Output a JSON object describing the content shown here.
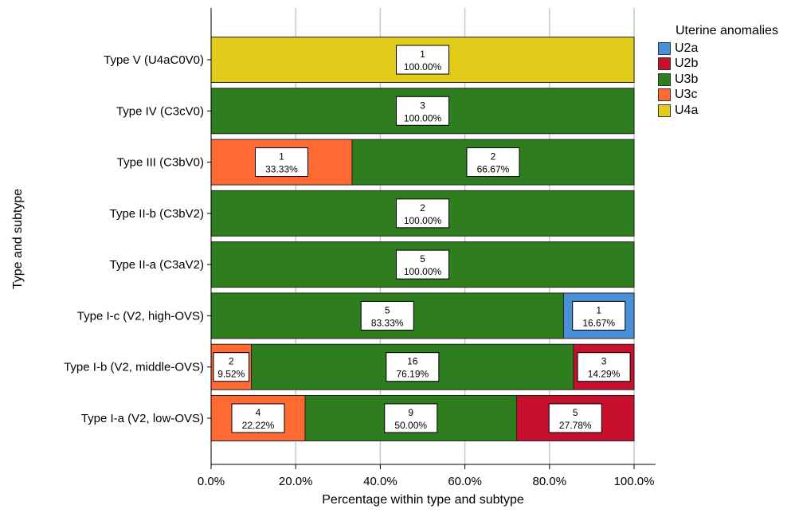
{
  "chart_data": {
    "type": "bar",
    "orientation": "horizontal",
    "stacked": true,
    "xlabel": "Percentage within type and subtype",
    "ylabel": "Type and subtype",
    "xlim": [
      0,
      100
    ],
    "x_ticks": [
      "0.0%",
      "20.0%",
      "40.0%",
      "60.0%",
      "80.0%",
      "100.0%"
    ],
    "grid": "vertical",
    "legend_position": "top-right",
    "legend_title": "Uterine anomalies",
    "legend": [
      {
        "name": "U2a",
        "color": "#4a90d9"
      },
      {
        "name": "U2b",
        "color": "#c8102e"
      },
      {
        "name": "U3b",
        "color": "#2e7d1f"
      },
      {
        "name": "U3c",
        "color": "#ff6a33"
      },
      {
        "name": "U4a",
        "color": "#e1cc1a"
      }
    ],
    "categories": [
      "Type V (U4aC0V0)",
      "Type IV (C3cV0)",
      "Type III (C3bV0)",
      "Type II-b (C3bV2)",
      "Type II-a (C3aV2)",
      "Type I-c (V2, high-OVS)",
      "Type I-b (V2, middle-OVS)",
      "Type I-a (V2, low-OVS)"
    ],
    "bars": [
      {
        "category": "Type V (U4aC0V0)",
        "segments": [
          {
            "series": "U4a",
            "count": "1",
            "percent": 100.0,
            "label": "100.00%"
          }
        ]
      },
      {
        "category": "Type IV (C3cV0)",
        "segments": [
          {
            "series": "U3b",
            "count": "3",
            "percent": 100.0,
            "label": "100.00%"
          }
        ]
      },
      {
        "category": "Type III (C3bV0)",
        "segments": [
          {
            "series": "U3c",
            "count": "1",
            "percent": 33.33,
            "label": "33.33%"
          },
          {
            "series": "U3b",
            "count": "2",
            "percent": 66.67,
            "label": "66.67%"
          }
        ]
      },
      {
        "category": "Type II-b (C3bV2)",
        "segments": [
          {
            "series": "U3b",
            "count": "2",
            "percent": 100.0,
            "label": "100.00%"
          }
        ]
      },
      {
        "category": "Type II-a (C3aV2)",
        "segments": [
          {
            "series": "U3b",
            "count": "5",
            "percent": 100.0,
            "label": "100.00%"
          }
        ]
      },
      {
        "category": "Type I-c (V2, high-OVS)",
        "segments": [
          {
            "series": "U3b",
            "count": "5",
            "percent": 83.33,
            "label": "83.33%"
          },
          {
            "series": "U2a",
            "count": "1",
            "percent": 16.67,
            "label": "16.67%"
          }
        ]
      },
      {
        "category": "Type I-b (V2, middle-OVS)",
        "segments": [
          {
            "series": "U3c",
            "count": "2",
            "percent": 9.52,
            "label": "9.52%"
          },
          {
            "series": "U3b",
            "count": "16",
            "percent": 76.19,
            "label": "76.19%"
          },
          {
            "series": "U2b",
            "count": "3",
            "percent": 14.29,
            "label": "14.29%"
          }
        ]
      },
      {
        "category": "Type I-a (V2, low-OVS)",
        "segments": [
          {
            "series": "U3c",
            "count": "4",
            "percent": 22.22,
            "label": "22.22%"
          },
          {
            "series": "U3b",
            "count": "9",
            "percent": 50.0,
            "label": "50.00%"
          },
          {
            "series": "U2b",
            "count": "5",
            "percent": 27.78,
            "label": "27.78%"
          }
        ]
      }
    ]
  }
}
